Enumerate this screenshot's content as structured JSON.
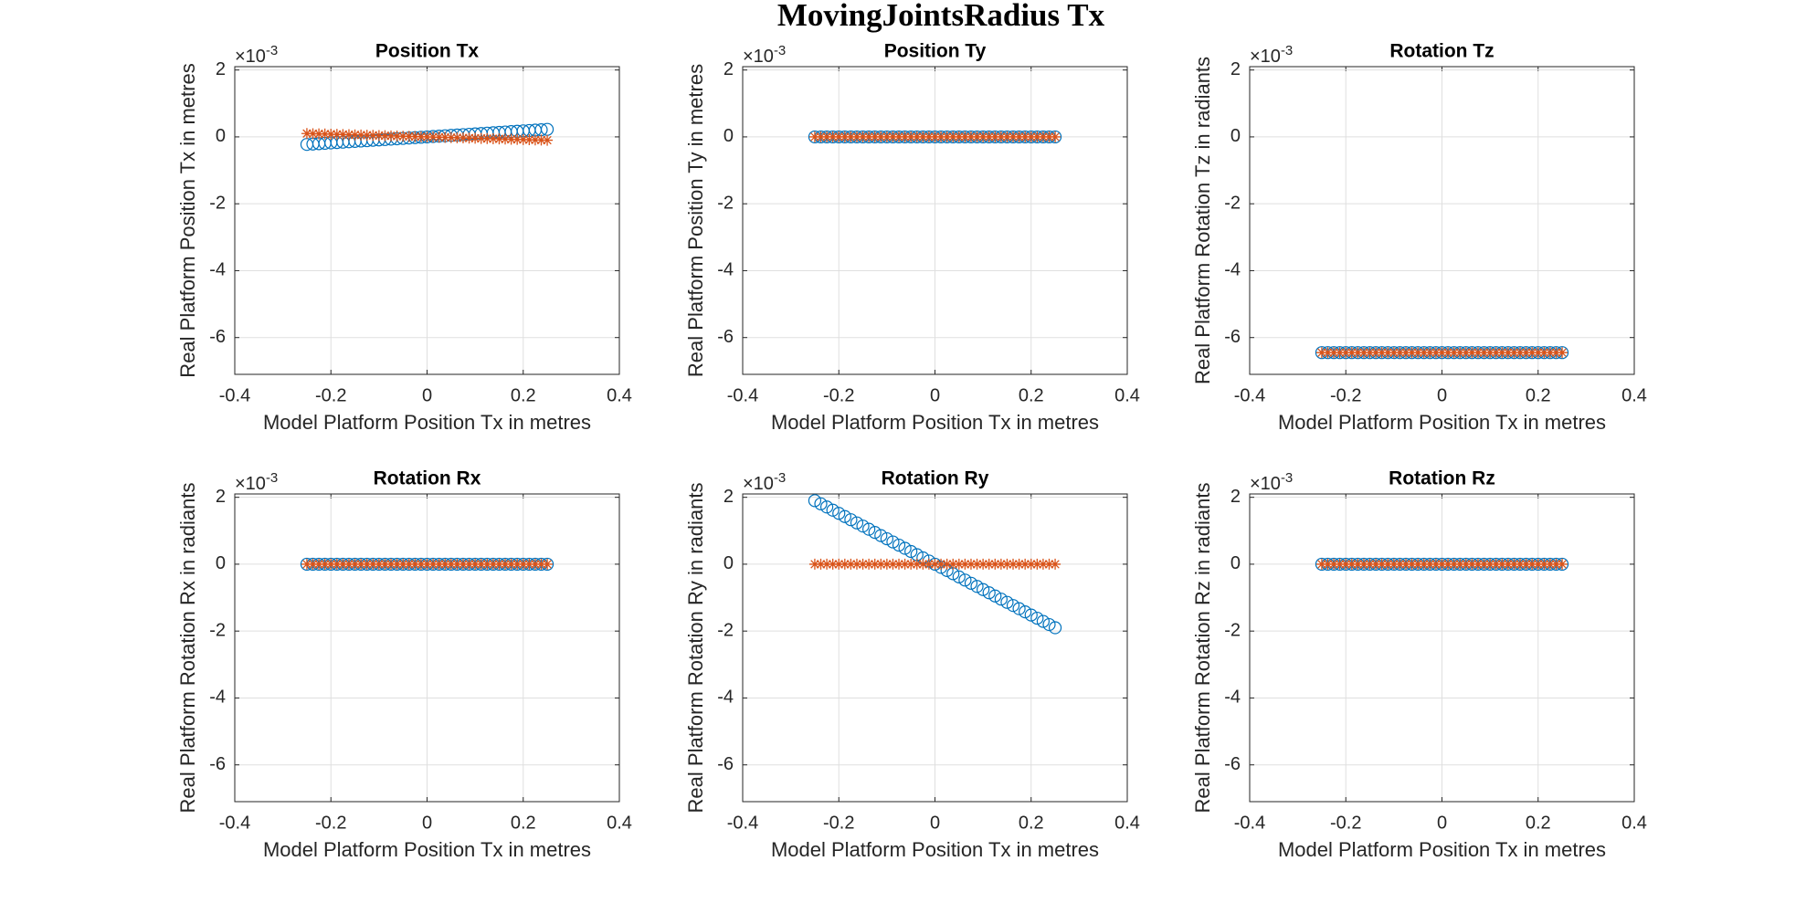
{
  "figure_title": "MovingJointsRadius Tx",
  "chart_data": [
    {
      "type": "scatter",
      "title": "Position Tx",
      "xlabel": "Model Platform Position Tx in metres",
      "ylabel": "Real Platform Position Tx in metres",
      "y_multiplier": "×10",
      "y_exponent": "-3",
      "xlim": [
        -0.4,
        0.4
      ],
      "xticks": [
        -0.4,
        -0.2,
        0,
        0.2,
        0.4
      ],
      "ylim": [
        -0.0071,
        0.0021
      ],
      "yticks": [
        {
          "value": -0.006,
          "label": "-6"
        },
        {
          "value": -0.004,
          "label": "-4"
        },
        {
          "value": -0.002,
          "label": "-2"
        },
        {
          "value": 0,
          "label": "0"
        },
        {
          "value": 0.002,
          "label": "2"
        }
      ],
      "grid": true,
      "x": [
        -0.25,
        -0.2375,
        -0.225,
        -0.2125,
        -0.2,
        -0.1875,
        -0.175,
        -0.1625,
        -0.15,
        -0.1375,
        -0.125,
        -0.1125,
        -0.1,
        -0.0875,
        -0.075,
        -0.0625,
        -0.05,
        -0.0375,
        -0.025,
        -0.0125,
        0,
        0.0125,
        0.025,
        0.0375,
        0.05,
        0.0625,
        0.075,
        0.0875,
        0.1,
        0.1125,
        0.125,
        0.1375,
        0.15,
        0.1625,
        0.175,
        0.1875,
        0.2,
        0.2125,
        0.225,
        0.2375,
        0.25
      ],
      "series": [
        {
          "color": "#0072bd",
          "marker": "circle",
          "values": [
            -0.000225,
            -0.00021375,
            -0.0002025,
            -0.00019125,
            -0.00018,
            -0.00016875,
            -0.0001575,
            -0.00014625,
            -0.000135,
            -0.00012375,
            -0.0001125,
            -0.00010125,
            -9e-05,
            -7.875e-05,
            -6.75e-05,
            -5.625e-05,
            -4.5e-05,
            -3.375e-05,
            -2.25e-05,
            -1.125e-05,
            0,
            1.125e-05,
            2.25e-05,
            3.375e-05,
            4.5e-05,
            5.625e-05,
            6.75e-05,
            7.875e-05,
            9e-05,
            0.00010125,
            0.0001125,
            0.00012375,
            0.000135,
            0.00014625,
            0.0001575,
            0.00016875,
            0.00018,
            0.00019125,
            0.0002025,
            0.00021375,
            0.000225
          ]
        },
        {
          "color": "#d95319",
          "marker": "star",
          "values": [
            0.0001,
            9.5e-05,
            9e-05,
            8.5e-05,
            8e-05,
            7.5e-05,
            7e-05,
            6.5e-05,
            6e-05,
            5.5e-05,
            5e-05,
            4.5e-05,
            4e-05,
            3.5e-05,
            3e-05,
            2.5e-05,
            2e-05,
            1.5e-05,
            1e-05,
            5e-06,
            0,
            -5e-06,
            -1e-05,
            -1.5e-05,
            -2e-05,
            -2.5e-05,
            -3e-05,
            -3.5e-05,
            -4e-05,
            -4.5e-05,
            -5e-05,
            -5.5e-05,
            -6e-05,
            -6.5e-05,
            -7e-05,
            -7.5e-05,
            -8e-05,
            -8.5e-05,
            -9e-05,
            -9.5e-05,
            -0.0001
          ]
        }
      ]
    },
    {
      "type": "scatter",
      "title": "Position Ty",
      "xlabel": "Model Platform Position Tx in metres",
      "ylabel": "Real Platform Position Ty in metres",
      "y_multiplier": "×10",
      "y_exponent": "-3",
      "xlim": [
        -0.4,
        0.4
      ],
      "xticks": [
        -0.4,
        -0.2,
        0,
        0.2,
        0.4
      ],
      "ylim": [
        -0.0071,
        0.0021
      ],
      "yticks": [
        {
          "value": -0.006,
          "label": "-6"
        },
        {
          "value": -0.004,
          "label": "-4"
        },
        {
          "value": -0.002,
          "label": "-2"
        },
        {
          "value": 0,
          "label": "0"
        },
        {
          "value": 0.002,
          "label": "2"
        }
      ],
      "grid": true,
      "x": [
        -0.25,
        -0.2375,
        -0.225,
        -0.2125,
        -0.2,
        -0.1875,
        -0.175,
        -0.1625,
        -0.15,
        -0.1375,
        -0.125,
        -0.1125,
        -0.1,
        -0.0875,
        -0.075,
        -0.0625,
        -0.05,
        -0.0375,
        -0.025,
        -0.0125,
        0,
        0.0125,
        0.025,
        0.0375,
        0.05,
        0.0625,
        0.075,
        0.0875,
        0.1,
        0.1125,
        0.125,
        0.1375,
        0.15,
        0.1625,
        0.175,
        0.1875,
        0.2,
        0.2125,
        0.225,
        0.2375,
        0.25
      ],
      "series": [
        {
          "color": "#0072bd",
          "marker": "circle",
          "values": [
            0,
            0,
            0,
            0,
            0,
            0,
            0,
            0,
            0,
            0,
            0,
            0,
            0,
            0,
            0,
            0,
            0,
            0,
            0,
            0,
            0,
            0,
            0,
            0,
            0,
            0,
            0,
            0,
            0,
            0,
            0,
            0,
            0,
            0,
            0,
            0,
            0,
            0,
            0,
            0,
            0
          ]
        },
        {
          "color": "#d95319",
          "marker": "star",
          "values": [
            0,
            0,
            0,
            0,
            0,
            0,
            0,
            0,
            0,
            0,
            0,
            0,
            0,
            0,
            0,
            0,
            0,
            0,
            0,
            0,
            0,
            0,
            0,
            0,
            0,
            0,
            0,
            0,
            0,
            0,
            0,
            0,
            0,
            0,
            0,
            0,
            0,
            0,
            0,
            0,
            0
          ]
        }
      ]
    },
    {
      "type": "scatter",
      "title": "Rotation Tz",
      "xlabel": "Model Platform Position Tx in metres",
      "ylabel": "Real Platform Rotation Tz in radiants",
      "y_multiplier": "×10",
      "y_exponent": "-3",
      "xlim": [
        -0.4,
        0.4
      ],
      "xticks": [
        -0.4,
        -0.2,
        0,
        0.2,
        0.4
      ],
      "ylim": [
        -0.0071,
        0.0021
      ],
      "yticks": [
        {
          "value": -0.006,
          "label": "-6"
        },
        {
          "value": -0.004,
          "label": "-4"
        },
        {
          "value": -0.002,
          "label": "-2"
        },
        {
          "value": 0,
          "label": "0"
        },
        {
          "value": 0.002,
          "label": "2"
        }
      ],
      "grid": true,
      "x": [
        -0.25,
        -0.2375,
        -0.225,
        -0.2125,
        -0.2,
        -0.1875,
        -0.175,
        -0.1625,
        -0.15,
        -0.1375,
        -0.125,
        -0.1125,
        -0.1,
        -0.0875,
        -0.075,
        -0.0625,
        -0.05,
        -0.0375,
        -0.025,
        -0.0125,
        0,
        0.0125,
        0.025,
        0.0375,
        0.05,
        0.0625,
        0.075,
        0.0875,
        0.1,
        0.1125,
        0.125,
        0.1375,
        0.15,
        0.1625,
        0.175,
        0.1875,
        0.2,
        0.2125,
        0.225,
        0.2375,
        0.25
      ],
      "series": [
        {
          "color": "#0072bd",
          "marker": "circle",
          "values": [
            -0.00645,
            -0.00645,
            -0.00645,
            -0.00645,
            -0.00645,
            -0.00645,
            -0.00645,
            -0.00645,
            -0.00645,
            -0.00645,
            -0.00645,
            -0.00645,
            -0.00645,
            -0.00645,
            -0.00645,
            -0.00645,
            -0.00645,
            -0.00645,
            -0.00645,
            -0.00645,
            -0.00645,
            -0.00645,
            -0.00645,
            -0.00645,
            -0.00645,
            -0.00645,
            -0.00645,
            -0.00645,
            -0.00645,
            -0.00645,
            -0.00645,
            -0.00645,
            -0.00645,
            -0.00645,
            -0.00645,
            -0.00645,
            -0.00645,
            -0.00645,
            -0.00645,
            -0.00645,
            -0.00645
          ]
        },
        {
          "color": "#d95319",
          "marker": "star",
          "values": [
            -0.00645,
            -0.00645,
            -0.00645,
            -0.00645,
            -0.00645,
            -0.00645,
            -0.00645,
            -0.00645,
            -0.00645,
            -0.00645,
            -0.00645,
            -0.00645,
            -0.00645,
            -0.00645,
            -0.00645,
            -0.00645,
            -0.00645,
            -0.00645,
            -0.00645,
            -0.00645,
            -0.00645,
            -0.00645,
            -0.00645,
            -0.00645,
            -0.00645,
            -0.00645,
            -0.00645,
            -0.00645,
            -0.00645,
            -0.00645,
            -0.00645,
            -0.00645,
            -0.00645,
            -0.00645,
            -0.00645,
            -0.00645,
            -0.00645,
            -0.00645,
            -0.00645,
            -0.00645,
            -0.00645
          ]
        }
      ]
    },
    {
      "type": "scatter",
      "title": "Rotation Rx",
      "xlabel": "Model Platform Position Tx in metres",
      "ylabel": "Real Platform Rotation Rx in radiants",
      "y_multiplier": "×10",
      "y_exponent": "-3",
      "xlim": [
        -0.4,
        0.4
      ],
      "xticks": [
        -0.4,
        -0.2,
        0,
        0.2,
        0.4
      ],
      "ylim": [
        -0.0071,
        0.0021
      ],
      "yticks": [
        {
          "value": -0.006,
          "label": "-6"
        },
        {
          "value": -0.004,
          "label": "-4"
        },
        {
          "value": -0.002,
          "label": "-2"
        },
        {
          "value": 0,
          "label": "0"
        },
        {
          "value": 0.002,
          "label": "2"
        }
      ],
      "grid": true,
      "x": [
        -0.25,
        -0.2375,
        -0.225,
        -0.2125,
        -0.2,
        -0.1875,
        -0.175,
        -0.1625,
        -0.15,
        -0.1375,
        -0.125,
        -0.1125,
        -0.1,
        -0.0875,
        -0.075,
        -0.0625,
        -0.05,
        -0.0375,
        -0.025,
        -0.0125,
        0,
        0.0125,
        0.025,
        0.0375,
        0.05,
        0.0625,
        0.075,
        0.0875,
        0.1,
        0.1125,
        0.125,
        0.1375,
        0.15,
        0.1625,
        0.175,
        0.1875,
        0.2,
        0.2125,
        0.225,
        0.2375,
        0.25
      ],
      "series": [
        {
          "color": "#0072bd",
          "marker": "circle",
          "values": [
            0,
            0,
            0,
            0,
            0,
            0,
            0,
            0,
            0,
            0,
            0,
            0,
            0,
            0,
            0,
            0,
            0,
            0,
            0,
            0,
            0,
            0,
            0,
            0,
            0,
            0,
            0,
            0,
            0,
            0,
            0,
            0,
            0,
            0,
            0,
            0,
            0,
            0,
            0,
            0,
            0
          ]
        },
        {
          "color": "#d95319",
          "marker": "star",
          "values": [
            0,
            0,
            0,
            0,
            0,
            0,
            0,
            0,
            0,
            0,
            0,
            0,
            0,
            0,
            0,
            0,
            0,
            0,
            0,
            0,
            0,
            0,
            0,
            0,
            0,
            0,
            0,
            0,
            0,
            0,
            0,
            0,
            0,
            0,
            0,
            0,
            0,
            0,
            0,
            0,
            0
          ]
        }
      ]
    },
    {
      "type": "scatter",
      "title": "Rotation Ry",
      "xlabel": "Model Platform Position Tx in metres",
      "ylabel": "Real Platform Rotation Ry in radiants",
      "y_multiplier": "×10",
      "y_exponent": "-3",
      "xlim": [
        -0.4,
        0.4
      ],
      "xticks": [
        -0.4,
        -0.2,
        0,
        0.2,
        0.4
      ],
      "ylim": [
        -0.0071,
        0.0021
      ],
      "yticks": [
        {
          "value": -0.006,
          "label": "-6"
        },
        {
          "value": -0.004,
          "label": "-4"
        },
        {
          "value": -0.002,
          "label": "-2"
        },
        {
          "value": 0,
          "label": "0"
        },
        {
          "value": 0.002,
          "label": "2"
        }
      ],
      "grid": true,
      "x": [
        -0.25,
        -0.2375,
        -0.225,
        -0.2125,
        -0.2,
        -0.1875,
        -0.175,
        -0.1625,
        -0.15,
        -0.1375,
        -0.125,
        -0.1125,
        -0.1,
        -0.0875,
        -0.075,
        -0.0625,
        -0.05,
        -0.0375,
        -0.025,
        -0.0125,
        0,
        0.0125,
        0.025,
        0.0375,
        0.05,
        0.0625,
        0.075,
        0.0875,
        0.1,
        0.1125,
        0.125,
        0.1375,
        0.15,
        0.1625,
        0.175,
        0.1875,
        0.2,
        0.2125,
        0.225,
        0.2375,
        0.25
      ],
      "series": [
        {
          "color": "#0072bd",
          "marker": "circle",
          "values": [
            0.0019,
            0.001805,
            0.00171,
            0.001615,
            0.00152,
            0.001425,
            0.00133,
            0.001235,
            0.00114,
            0.001045,
            0.00095,
            0.000855,
            0.00076,
            0.000665,
            0.00057,
            0.000475,
            0.00038,
            0.000285,
            0.00019,
            9.5e-05,
            0,
            -9.5e-05,
            -0.00019,
            -0.000285,
            -0.00038,
            -0.000475,
            -0.00057,
            -0.000665,
            -0.00076,
            -0.000855,
            -0.00095,
            -0.001045,
            -0.00114,
            -0.001235,
            -0.00133,
            -0.001425,
            -0.00152,
            -0.001615,
            -0.00171,
            -0.001805,
            -0.0019
          ]
        },
        {
          "color": "#d95319",
          "marker": "star",
          "values": [
            0,
            0,
            0,
            0,
            0,
            0,
            0,
            0,
            0,
            0,
            0,
            0,
            0,
            0,
            0,
            0,
            0,
            0,
            0,
            0,
            0,
            0,
            0,
            0,
            0,
            0,
            0,
            0,
            0,
            0,
            0,
            0,
            0,
            0,
            0,
            0,
            0,
            0,
            0,
            0,
            0
          ]
        }
      ]
    },
    {
      "type": "scatter",
      "title": "Rotation Rz",
      "xlabel": "Model Platform Position Tx in metres",
      "ylabel": "Real Platform Rotation Rz in radiants",
      "y_multiplier": "×10",
      "y_exponent": "-3",
      "xlim": [
        -0.4,
        0.4
      ],
      "xticks": [
        -0.4,
        -0.2,
        0,
        0.2,
        0.4
      ],
      "ylim": [
        -0.0071,
        0.0021
      ],
      "yticks": [
        {
          "value": -0.006,
          "label": "-6"
        },
        {
          "value": -0.004,
          "label": "-4"
        },
        {
          "value": -0.002,
          "label": "-2"
        },
        {
          "value": 0,
          "label": "0"
        },
        {
          "value": 0.002,
          "label": "2"
        }
      ],
      "grid": true,
      "x": [
        -0.25,
        -0.2375,
        -0.225,
        -0.2125,
        -0.2,
        -0.1875,
        -0.175,
        -0.1625,
        -0.15,
        -0.1375,
        -0.125,
        -0.1125,
        -0.1,
        -0.0875,
        -0.075,
        -0.0625,
        -0.05,
        -0.0375,
        -0.025,
        -0.0125,
        0,
        0.0125,
        0.025,
        0.0375,
        0.05,
        0.0625,
        0.075,
        0.0875,
        0.1,
        0.1125,
        0.125,
        0.1375,
        0.15,
        0.1625,
        0.175,
        0.1875,
        0.2,
        0.2125,
        0.225,
        0.2375,
        0.25
      ],
      "series": [
        {
          "color": "#0072bd",
          "marker": "circle",
          "values": [
            0,
            0,
            0,
            0,
            0,
            0,
            0,
            0,
            0,
            0,
            0,
            0,
            0,
            0,
            0,
            0,
            0,
            0,
            0,
            0,
            0,
            0,
            0,
            0,
            0,
            0,
            0,
            0,
            0,
            0,
            0,
            0,
            0,
            0,
            0,
            0,
            0,
            0,
            0,
            0,
            0
          ]
        },
        {
          "color": "#d95319",
          "marker": "star",
          "values": [
            0,
            0,
            0,
            0,
            0,
            0,
            0,
            0,
            0,
            0,
            0,
            0,
            0,
            0,
            0,
            0,
            0,
            0,
            0,
            0,
            0,
            0,
            0,
            0,
            0,
            0,
            0,
            0,
            0,
            0,
            0,
            0,
            0,
            0,
            0,
            0,
            0,
            0,
            0,
            0,
            0
          ]
        }
      ]
    }
  ]
}
